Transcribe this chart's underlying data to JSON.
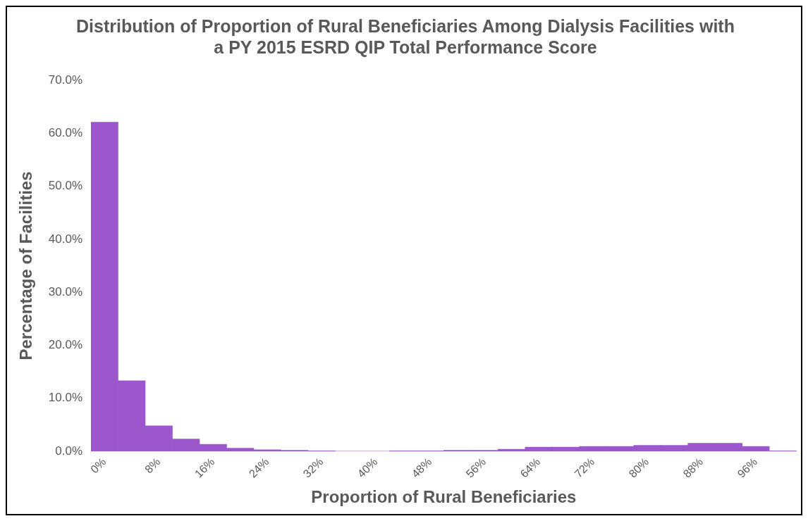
{
  "chart_data": {
    "type": "bar",
    "title": "Distribution of Proportion of Rural Beneficiaries Among Dialysis Facilities with a PY 2015 ESRD QIP Total Performance Score",
    "xlabel": "Proportion of Rural Beneficiaries",
    "ylabel": "Percentage of Facilities",
    "categories": [
      "0%",
      null,
      "8%",
      null,
      "16%",
      null,
      "24%",
      null,
      "32%",
      null,
      "40%",
      null,
      "48%",
      null,
      "56%",
      null,
      "64%",
      null,
      "72%",
      null,
      "80%",
      null,
      "88%",
      null,
      "96%",
      null
    ],
    "values": [
      62.1,
      13.3,
      4.8,
      2.3,
      1.3,
      0.6,
      0.3,
      0.2,
      0.1,
      0,
      0,
      0.1,
      0.1,
      0.2,
      0.2,
      0.4,
      0.8,
      0.8,
      0.9,
      0.9,
      1.1,
      1.1,
      1.5,
      1.5,
      0.9,
      0.1
    ],
    "color": "#9b57cb",
    "ylim": [
      0,
      70
    ],
    "yticks": [
      {
        "value": 0,
        "label": "0.0%"
      },
      {
        "value": 10,
        "label": "10.0%"
      },
      {
        "value": 20,
        "label": "20.0%"
      },
      {
        "value": 30,
        "label": "30.0%"
      },
      {
        "value": 40,
        "label": "40.0%"
      },
      {
        "value": 50,
        "label": "50.0%"
      },
      {
        "value": 60,
        "label": "60.0%"
      },
      {
        "value": 70,
        "label": "70.0%"
      }
    ],
    "grid": false,
    "legend": false
  }
}
